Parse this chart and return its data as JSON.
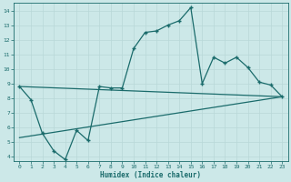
{
  "xlabel": "Humidex (Indice chaleur)",
  "bg_color": "#cce8e8",
  "grid_color": "#b8d8d8",
  "line_color": "#1a6b6b",
  "xlim": [
    -0.5,
    23.5
  ],
  "ylim": [
    3.7,
    14.5
  ],
  "xticks": [
    0,
    1,
    2,
    3,
    4,
    5,
    6,
    7,
    8,
    9,
    10,
    11,
    12,
    13,
    14,
    15,
    16,
    17,
    18,
    19,
    20,
    21,
    22,
    23
  ],
  "yticks": [
    4,
    5,
    6,
    7,
    8,
    9,
    10,
    11,
    12,
    13,
    14
  ],
  "upper_line_x": [
    0,
    23
  ],
  "upper_line_y": [
    8.8,
    8.1
  ],
  "lower_line_x": [
    0,
    23
  ],
  "lower_line_y": [
    5.3,
    8.1
  ],
  "curve_x": [
    0,
    1,
    2,
    3,
    4,
    5,
    6,
    7,
    8,
    9,
    10,
    11,
    12,
    13,
    14,
    15,
    16,
    17,
    18,
    19,
    20,
    21,
    22,
    23
  ],
  "curve_y": [
    8.8,
    7.9,
    5.6,
    4.4,
    3.8,
    5.8,
    5.1,
    8.8,
    8.7,
    8.7,
    11.4,
    12.5,
    12.6,
    13.0,
    13.3,
    14.2,
    9.0,
    10.8,
    10.4,
    10.8,
    10.1,
    9.1,
    8.9,
    8.1
  ]
}
